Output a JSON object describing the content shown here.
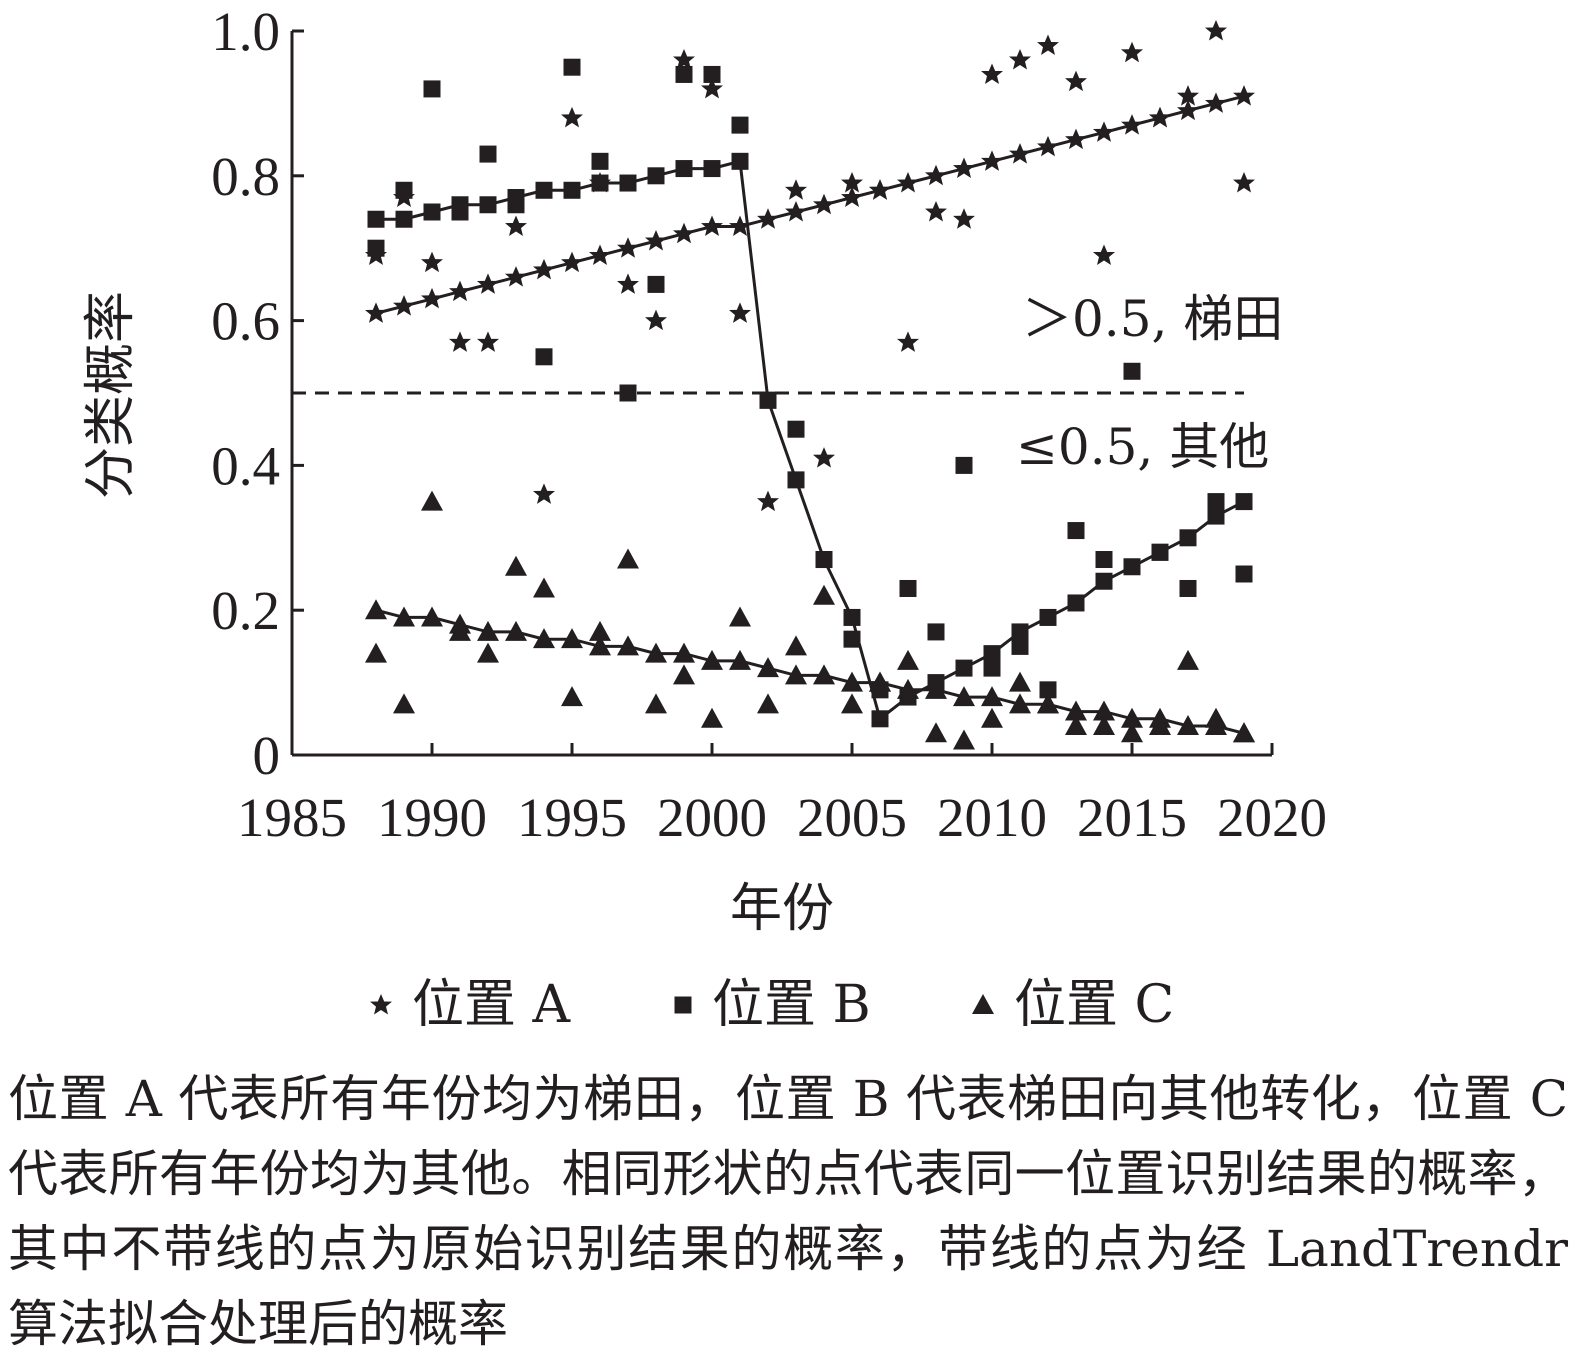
{
  "chart_data": {
    "type": "scatter",
    "title": "",
    "xlabel": "年份",
    "ylabel": "分类概率",
    "xlim": [
      1985,
      2020
    ],
    "ylim": [
      0,
      1.0
    ],
    "xticks": [
      "1985",
      "1990",
      "1995",
      "2000",
      "2005",
      "2010",
      "2015",
      "2020"
    ],
    "yticks": [
      "0",
      "0.2",
      "0.4",
      "0.6",
      "0.8",
      "1.0"
    ],
    "threshold": 0.5,
    "annotations": {
      "above": "＞0.5, 梯田",
      "below": "≤0.5, 其他"
    },
    "series": [
      {
        "name": "位置 A",
        "marker": "star",
        "raw": [
          [
            1988,
            0.69
          ],
          [
            1989,
            0.77
          ],
          [
            1990,
            0.68
          ],
          [
            1991,
            0.57
          ],
          [
            1992,
            0.57
          ],
          [
            1993,
            0.73
          ],
          [
            1994,
            0.36
          ],
          [
            1995,
            0.88
          ],
          [
            1996,
            0.79
          ],
          [
            1997,
            0.65
          ],
          [
            1998,
            0.6
          ],
          [
            1999,
            0.96
          ],
          [
            2000,
            0.92
          ],
          [
            2001,
            0.61
          ],
          [
            2002,
            0.35
          ],
          [
            2003,
            0.78
          ],
          [
            2004,
            0.41
          ],
          [
            2005,
            0.79
          ],
          [
            2006,
            0.78
          ],
          [
            2007,
            0.57
          ],
          [
            2008,
            0.75
          ],
          [
            2009,
            0.74
          ],
          [
            2010,
            0.94
          ],
          [
            2011,
            0.96
          ],
          [
            2012,
            0.98
          ],
          [
            2013,
            0.93
          ],
          [
            2014,
            0.69
          ],
          [
            2015,
            0.97
          ],
          [
            2016,
            0.88
          ],
          [
            2017,
            0.91
          ],
          [
            2018,
            1.0
          ],
          [
            2019,
            0.79
          ]
        ],
        "fitted": [
          [
            1988,
            0.61
          ],
          [
            1989,
            0.62
          ],
          [
            1990,
            0.63
          ],
          [
            1991,
            0.64
          ],
          [
            1992,
            0.65
          ],
          [
            1993,
            0.66
          ],
          [
            1994,
            0.67
          ],
          [
            1995,
            0.68
          ],
          [
            1996,
            0.69
          ],
          [
            1997,
            0.7
          ],
          [
            1998,
            0.71
          ],
          [
            1999,
            0.72
          ],
          [
            2000,
            0.73
          ],
          [
            2001,
            0.73
          ],
          [
            2002,
            0.74
          ],
          [
            2003,
            0.75
          ],
          [
            2004,
            0.76
          ],
          [
            2005,
            0.77
          ],
          [
            2006,
            0.78
          ],
          [
            2007,
            0.79
          ],
          [
            2008,
            0.8
          ],
          [
            2009,
            0.81
          ],
          [
            2010,
            0.82
          ],
          [
            2011,
            0.83
          ],
          [
            2012,
            0.84
          ],
          [
            2013,
            0.85
          ],
          [
            2014,
            0.86
          ],
          [
            2015,
            0.87
          ],
          [
            2016,
            0.88
          ],
          [
            2017,
            0.89
          ],
          [
            2018,
            0.9
          ],
          [
            2019,
            0.91
          ]
        ]
      },
      {
        "name": "位置 B",
        "marker": "square",
        "raw": [
          [
            1988,
            0.7
          ],
          [
            1989,
            0.78
          ],
          [
            1990,
            0.92
          ],
          [
            1991,
            0.75
          ],
          [
            1992,
            0.83
          ],
          [
            1993,
            0.76
          ],
          [
            1994,
            0.55
          ],
          [
            1995,
            0.95
          ],
          [
            1996,
            0.82
          ],
          [
            1997,
            0.5
          ],
          [
            1998,
            0.65
          ],
          [
            1999,
            0.94
          ],
          [
            2000,
            0.94
          ],
          [
            2001,
            0.87
          ],
          [
            2002,
            0.49
          ],
          [
            2003,
            0.45
          ],
          [
            2004,
            0.27
          ],
          [
            2005,
            0.16
          ],
          [
            2006,
            0.09
          ],
          [
            2007,
            0.23
          ],
          [
            2008,
            0.17
          ],
          [
            2009,
            0.4
          ],
          [
            2010,
            0.12
          ],
          [
            2011,
            0.15
          ],
          [
            2012,
            0.09
          ],
          [
            2013,
            0.31
          ],
          [
            2014,
            0.27
          ],
          [
            2015,
            0.53
          ],
          [
            2016,
            0.28
          ],
          [
            2017,
            0.23
          ],
          [
            2018,
            0.35
          ],
          [
            2019,
            0.25
          ]
        ],
        "fitted": [
          [
            1988,
            0.74
          ],
          [
            1989,
            0.74
          ],
          [
            1990,
            0.75
          ],
          [
            1991,
            0.76
          ],
          [
            1992,
            0.76
          ],
          [
            1993,
            0.77
          ],
          [
            1994,
            0.78
          ],
          [
            1995,
            0.78
          ],
          [
            1996,
            0.79
          ],
          [
            1997,
            0.79
          ],
          [
            1998,
            0.8
          ],
          [
            1999,
            0.81
          ],
          [
            2000,
            0.81
          ],
          [
            2001,
            0.82
          ],
          [
            2002,
            0.49
          ],
          [
            2003,
            0.38
          ],
          [
            2004,
            0.27
          ],
          [
            2005,
            0.19
          ],
          [
            2006,
            0.05
          ],
          [
            2007,
            0.08
          ],
          [
            2008,
            0.1
          ],
          [
            2009,
            0.12
          ],
          [
            2010,
            0.14
          ],
          [
            2011,
            0.17
          ],
          [
            2012,
            0.19
          ],
          [
            2013,
            0.21
          ],
          [
            2014,
            0.24
          ],
          [
            2015,
            0.26
          ],
          [
            2016,
            0.28
          ],
          [
            2017,
            0.3
          ],
          [
            2018,
            0.33
          ],
          [
            2019,
            0.35
          ]
        ]
      },
      {
        "name": "位置 C",
        "marker": "triangle",
        "raw": [
          [
            1988,
            0.14
          ],
          [
            1989,
            0.07
          ],
          [
            1990,
            0.35
          ],
          [
            1991,
            0.17
          ],
          [
            1992,
            0.14
          ],
          [
            1993,
            0.26
          ],
          [
            1994,
            0.23
          ],
          [
            1995,
            0.08
          ],
          [
            1996,
            0.17
          ],
          [
            1997,
            0.27
          ],
          [
            1998,
            0.07
          ],
          [
            1999,
            0.11
          ],
          [
            2000,
            0.05
          ],
          [
            2001,
            0.19
          ],
          [
            2002,
            0.07
          ],
          [
            2003,
            0.15
          ],
          [
            2004,
            0.22
          ],
          [
            2005,
            0.07
          ],
          [
            2006,
            0.1
          ],
          [
            2007,
            0.13
          ],
          [
            2008,
            0.03
          ],
          [
            2009,
            0.02
          ],
          [
            2010,
            0.05
          ],
          [
            2011,
            0.1
          ],
          [
            2012,
            0.07
          ],
          [
            2013,
            0.04
          ],
          [
            2014,
            0.04
          ],
          [
            2015,
            0.03
          ],
          [
            2016,
            0.04
          ],
          [
            2017,
            0.13
          ],
          [
            2018,
            0.05
          ],
          [
            2019,
            0.03
          ]
        ],
        "fitted": [
          [
            1988,
            0.2
          ],
          [
            1989,
            0.19
          ],
          [
            1990,
            0.19
          ],
          [
            1991,
            0.18
          ],
          [
            1992,
            0.17
          ],
          [
            1993,
            0.17
          ],
          [
            1994,
            0.16
          ],
          [
            1995,
            0.16
          ],
          [
            1996,
            0.15
          ],
          [
            1997,
            0.15
          ],
          [
            1998,
            0.14
          ],
          [
            1999,
            0.14
          ],
          [
            2000,
            0.13
          ],
          [
            2001,
            0.13
          ],
          [
            2002,
            0.12
          ],
          [
            2003,
            0.11
          ],
          [
            2004,
            0.11
          ],
          [
            2005,
            0.1
          ],
          [
            2006,
            0.1
          ],
          [
            2007,
            0.09
          ],
          [
            2008,
            0.09
          ],
          [
            2009,
            0.08
          ],
          [
            2010,
            0.08
          ],
          [
            2011,
            0.07
          ],
          [
            2012,
            0.07
          ],
          [
            2013,
            0.06
          ],
          [
            2014,
            0.06
          ],
          [
            2015,
            0.05
          ],
          [
            2016,
            0.05
          ],
          [
            2017,
            0.04
          ],
          [
            2018,
            0.04
          ],
          [
            2019,
            0.03
          ]
        ]
      }
    ],
    "legend_position": "bottom",
    "color": "#231f20"
  },
  "caption": "位置 A 代表所有年份均为梯田，位置 B 代表梯田向其他转化，位置 C 代表所有年份均为其他。相同形状的点代表同一位置识别结果的概率，其中不带线的点为原始识别结果的概率，带线的点为经 LandTrendr 算法拟合处理后的概率"
}
